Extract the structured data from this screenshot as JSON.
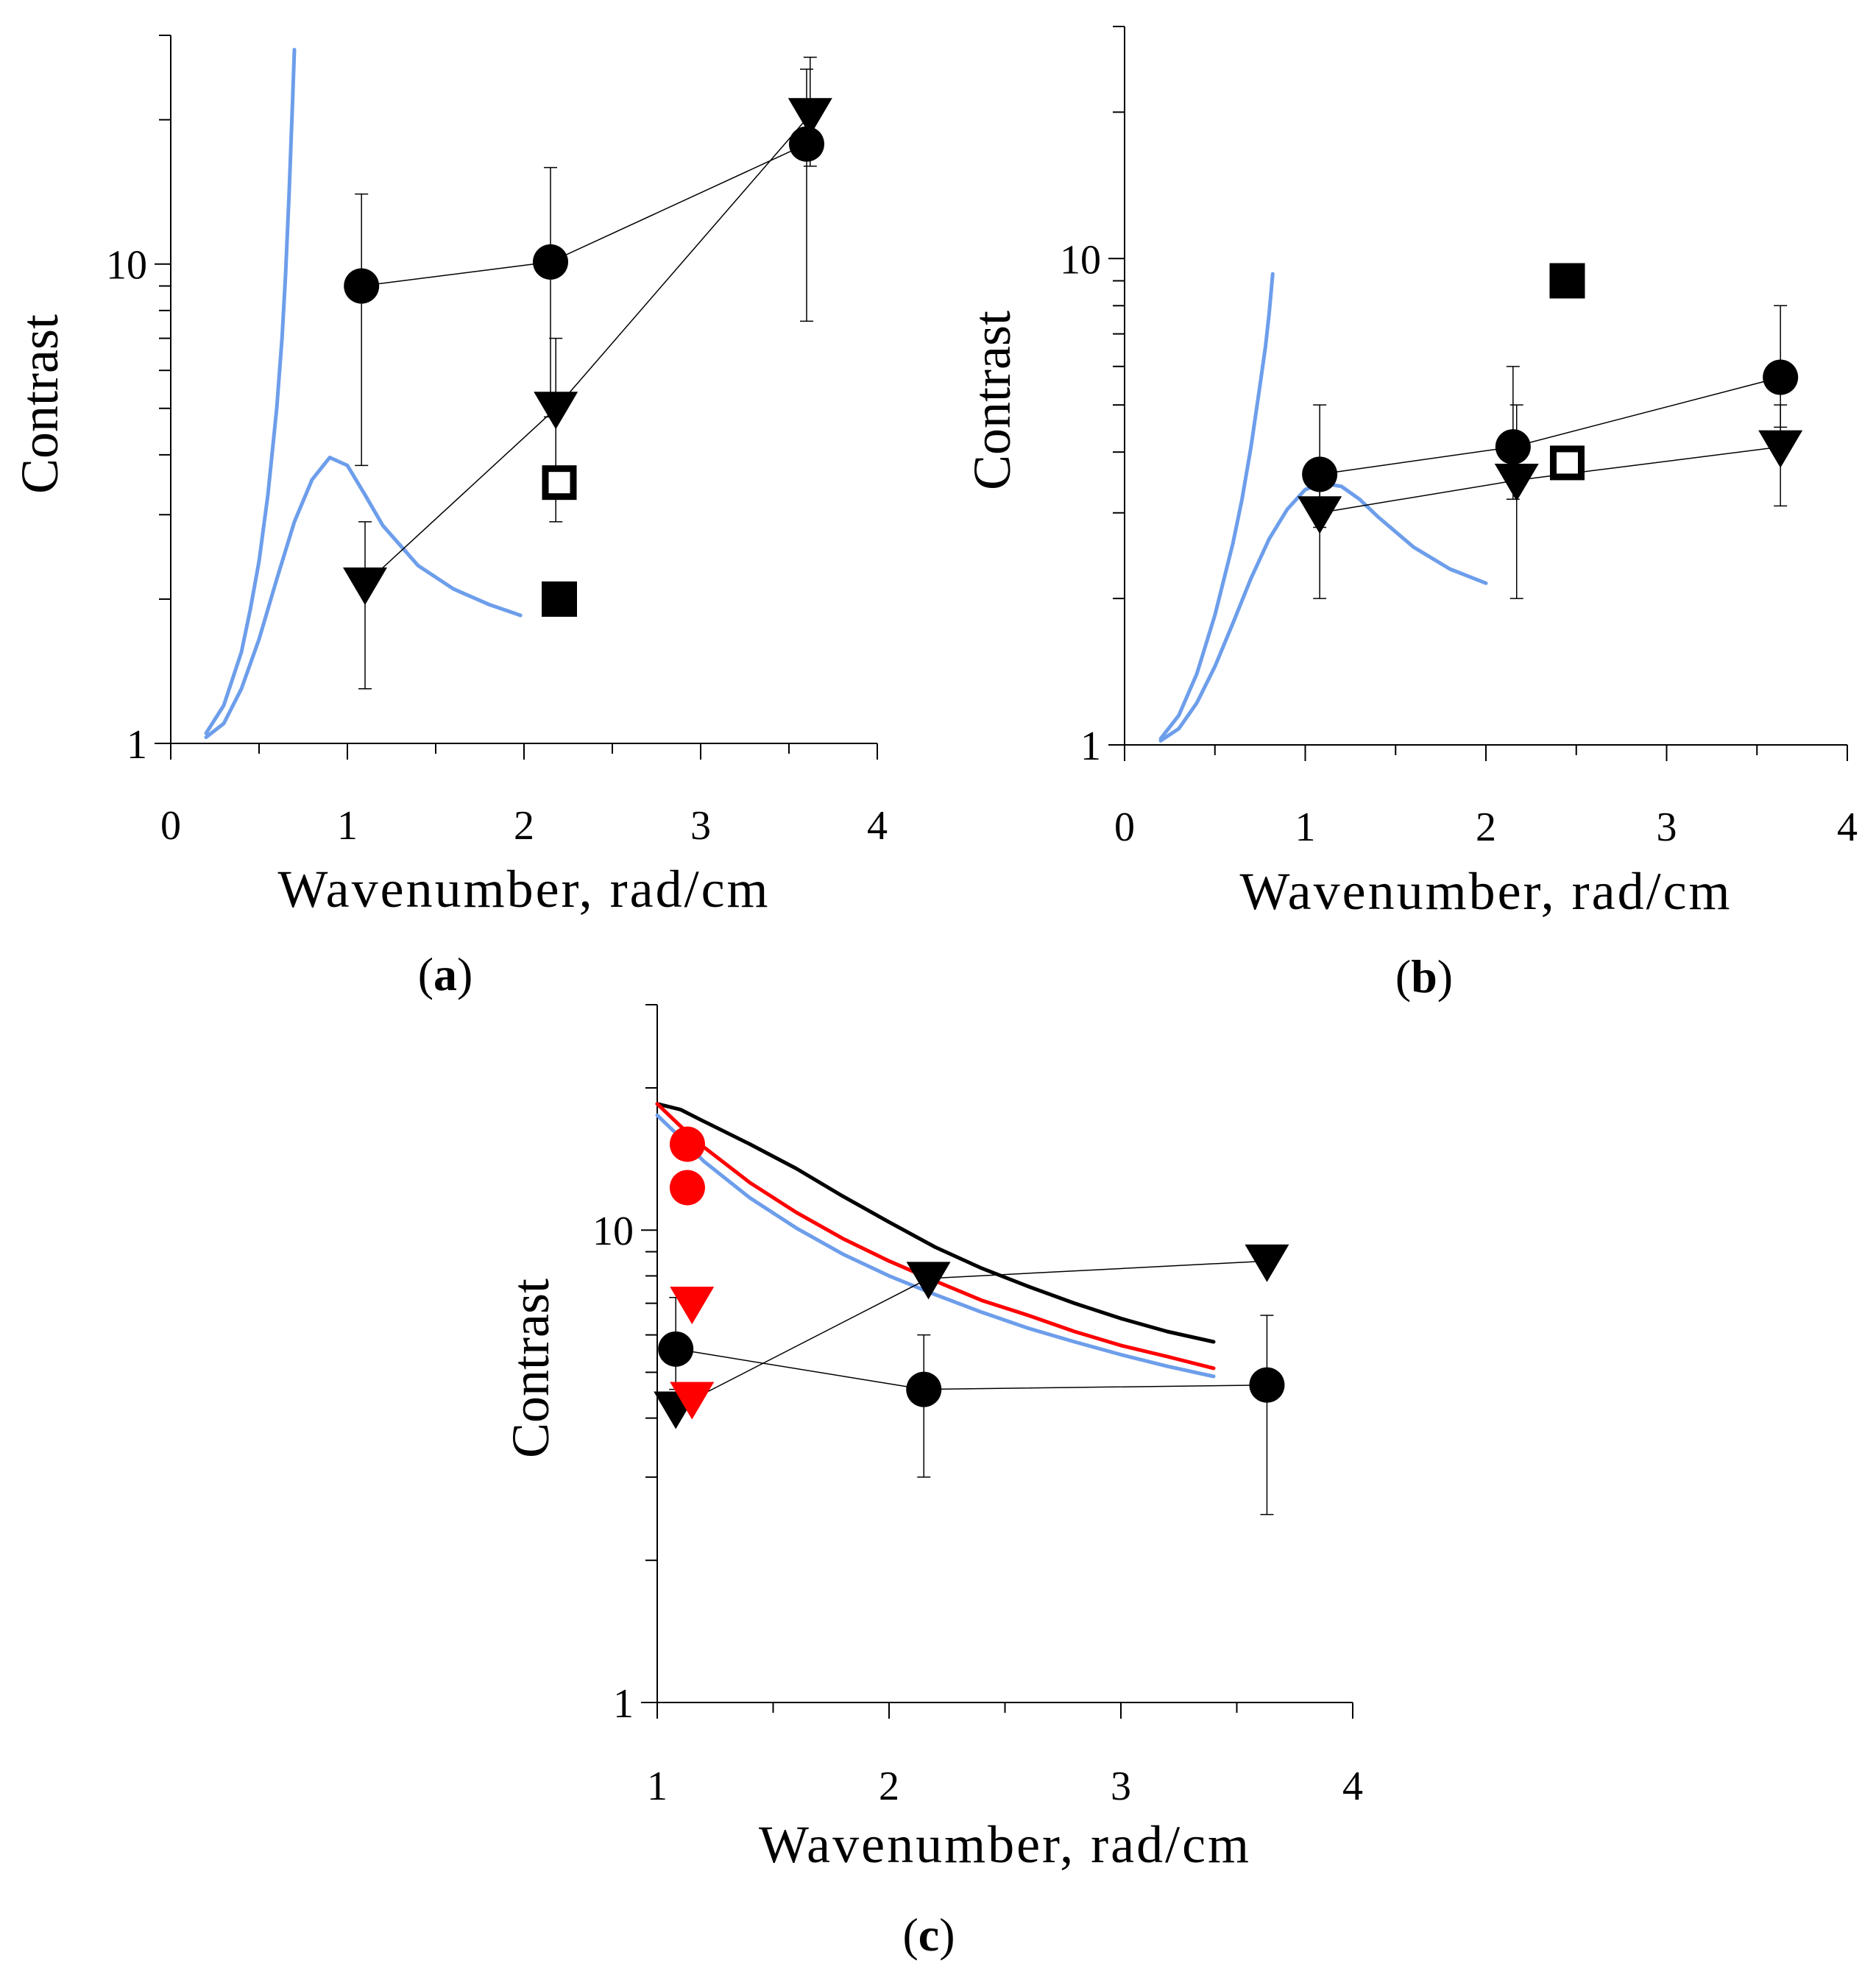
{
  "chart_data": [
    {
      "panel": "a",
      "type": "scatter",
      "panel_label": "a",
      "title": "",
      "xlabel": "Wavenumber, rad/cm",
      "ylabel": "Contrast",
      "xlim": [
        0,
        4
      ],
      "ylim": [
        1,
        30
      ],
      "yscale": "log",
      "x_ticks": [
        "0",
        "1",
        "2",
        "3",
        "4"
      ],
      "y_ticks": [
        "1",
        "10"
      ],
      "markers": [
        {
          "name": "circles",
          "shape": "circle",
          "fill": "#000000",
          "connected": true,
          "x": [
            1.08,
            2.15,
            3.6
          ],
          "y": [
            9.0,
            10.1,
            17.8
          ],
          "err_low": [
            3.8,
            4.8,
            7.6
          ],
          "err_high": [
            14.0,
            15.9,
            25.5
          ]
        },
        {
          "name": "triangles",
          "shape": "triangle-down",
          "fill": "#000000",
          "connected": true,
          "x": [
            1.1,
            2.18,
            3.62
          ],
          "y": [
            2.15,
            5.0,
            20.5
          ],
          "err_low": [
            1.3,
            2.9,
            16.0
          ],
          "err_high": [
            2.9,
            7.0,
            27.0
          ]
        },
        {
          "name": "open-square",
          "shape": "square-open",
          "fill": "#000000",
          "connected": false,
          "x": [
            2.2
          ],
          "y": [
            3.5
          ]
        },
        {
          "name": "filled-square",
          "shape": "square",
          "fill": "#000000",
          "connected": false,
          "x": [
            2.2
          ],
          "y": [
            2.0
          ]
        }
      ],
      "curves": [
        {
          "name": "blue-rising-curve",
          "color": "#6d9eeb",
          "x": [
            0.2,
            0.3,
            0.4,
            0.45,
            0.5,
            0.55,
            0.6,
            0.63,
            0.65,
            0.67,
            0.69,
            0.7
          ],
          "y": [
            1.05,
            1.2,
            1.55,
            1.9,
            2.4,
            3.3,
            5.0,
            7.0,
            9.5,
            14.0,
            22.0,
            28.0
          ]
        },
        {
          "name": "blue-hump-curve",
          "color": "#6d9eeb",
          "x": [
            0.2,
            0.3,
            0.4,
            0.5,
            0.6,
            0.7,
            0.8,
            0.9,
            1.0,
            1.1,
            1.2,
            1.4,
            1.6,
            1.8,
            1.98
          ],
          "y": [
            1.03,
            1.1,
            1.3,
            1.65,
            2.2,
            2.9,
            3.55,
            3.95,
            3.8,
            3.3,
            2.85,
            2.35,
            2.1,
            1.95,
            1.85
          ]
        }
      ]
    },
    {
      "panel": "b",
      "type": "scatter",
      "panel_label": "b",
      "title": "",
      "xlabel": "Wavenumber, rad/cm",
      "ylabel": "Contrast",
      "xlim": [
        0,
        4
      ],
      "ylim": [
        1,
        30
      ],
      "yscale": "log",
      "x_ticks": [
        "0",
        "1",
        "2",
        "3",
        "4"
      ],
      "y_ticks": [
        "1",
        "10"
      ],
      "markers": [
        {
          "name": "circles",
          "shape": "circle",
          "fill": "#000000",
          "connected": true,
          "x": [
            1.08,
            2.15,
            3.63
          ],
          "y": [
            3.6,
            4.1,
            5.7
          ],
          "err_low": [
            2.8,
            3.2,
            4.5
          ],
          "err_high": [
            5.0,
            6.0,
            8.0
          ]
        },
        {
          "name": "triangles",
          "shape": "triangle-down",
          "fill": "#000000",
          "connected": true,
          "x": [
            1.08,
            2.17,
            3.63
          ],
          "y": [
            3.0,
            3.5,
            4.1
          ],
          "err_low": [
            2.0,
            2.0,
            3.1
          ],
          "err_high": [
            3.6,
            5.0,
            5.0
          ]
        },
        {
          "name": "open-square",
          "shape": "square-open",
          "fill": "#000000",
          "connected": false,
          "x": [
            2.45
          ],
          "y": [
            3.8
          ]
        },
        {
          "name": "filled-square",
          "shape": "square",
          "fill": "#000000",
          "connected": false,
          "x": [
            2.45
          ],
          "y": [
            9.0
          ]
        }
      ],
      "curves": [
        {
          "name": "blue-rising-curve",
          "color": "#6d9eeb",
          "x": [
            0.2,
            0.3,
            0.4,
            0.5,
            0.6,
            0.65,
            0.7,
            0.75,
            0.78,
            0.8,
            0.82
          ],
          "y": [
            1.03,
            1.15,
            1.4,
            1.85,
            2.6,
            3.2,
            4.1,
            5.5,
            6.6,
            7.7,
            9.3
          ]
        },
        {
          "name": "blue-hump-curve",
          "color": "#6d9eeb",
          "x": [
            0.2,
            0.3,
            0.4,
            0.5,
            0.6,
            0.7,
            0.8,
            0.9,
            1.0,
            1.1,
            1.2,
            1.3,
            1.4,
            1.6,
            1.8,
            2.0
          ],
          "y": [
            1.02,
            1.08,
            1.22,
            1.45,
            1.78,
            2.2,
            2.65,
            3.05,
            3.35,
            3.45,
            3.4,
            3.2,
            2.95,
            2.55,
            2.3,
            2.15
          ]
        }
      ]
    },
    {
      "panel": "c",
      "type": "scatter",
      "panel_label": "c",
      "title": "",
      "xlabel": "Wavenumber, rad/cm",
      "ylabel": "Contrast",
      "xlim": [
        1,
        4
      ],
      "ylim": [
        1,
        30
      ],
      "yscale": "log",
      "x_ticks": [
        "1",
        "2",
        "3",
        "4"
      ],
      "y_ticks": [
        "1",
        "10"
      ],
      "markers": [
        {
          "name": "circles",
          "shape": "circle",
          "fill": "#000000",
          "connected": true,
          "x": [
            1.08,
            2.15,
            3.63
          ],
          "y": [
            5.6,
            4.6,
            4.7
          ],
          "err_low": [
            4.6,
            3.0,
            2.5
          ],
          "err_high": [
            7.2,
            6.0,
            6.6
          ]
        },
        {
          "name": "triangles",
          "shape": "triangle-down",
          "fill": "#000000",
          "connected": true,
          "x": [
            1.08,
            2.17,
            3.63
          ],
          "y": [
            4.2,
            7.9,
            8.6
          ]
        },
        {
          "name": "red-circles",
          "shape": "circle",
          "fill": "#ff0000",
          "connected": false,
          "x": [
            1.13,
            1.13
          ],
          "y": [
            15.2,
            12.3
          ]
        },
        {
          "name": "red-triangles",
          "shape": "triangle-down",
          "fill": "#ff0000",
          "connected": false,
          "x": [
            1.15,
            1.15
          ],
          "y": [
            7.0,
            4.4
          ]
        }
      ],
      "curves": [
        {
          "name": "black-curve",
          "color": "#000000",
          "x": [
            1.0,
            1.1,
            1.2,
            1.4,
            1.6,
            1.8,
            2.0,
            2.2,
            2.4,
            2.6,
            2.8,
            3.0,
            3.2,
            3.4
          ],
          "y": [
            18.5,
            18.0,
            17.0,
            15.2,
            13.5,
            11.8,
            10.4,
            9.2,
            8.3,
            7.6,
            7.0,
            6.5,
            6.1,
            5.8
          ]
        },
        {
          "name": "red-curve",
          "color": "#ff0000",
          "x": [
            1.0,
            1.1,
            1.2,
            1.4,
            1.6,
            1.8,
            2.0,
            2.2,
            2.4,
            2.6,
            2.8,
            3.0,
            3.2,
            3.4
          ],
          "y": [
            18.5,
            16.6,
            15.0,
            12.6,
            10.9,
            9.6,
            8.6,
            7.8,
            7.1,
            6.6,
            6.1,
            5.7,
            5.4,
            5.1
          ]
        },
        {
          "name": "blue-curve",
          "color": "#6d9eeb",
          "x": [
            1.0,
            1.1,
            1.2,
            1.4,
            1.6,
            1.8,
            2.0,
            2.2,
            2.4,
            2.6,
            2.8,
            3.0,
            3.2,
            3.4
          ],
          "y": [
            17.5,
            15.7,
            14.0,
            11.7,
            10.1,
            8.9,
            8.0,
            7.3,
            6.7,
            6.2,
            5.8,
            5.45,
            5.15,
            4.9
          ]
        }
      ]
    }
  ]
}
